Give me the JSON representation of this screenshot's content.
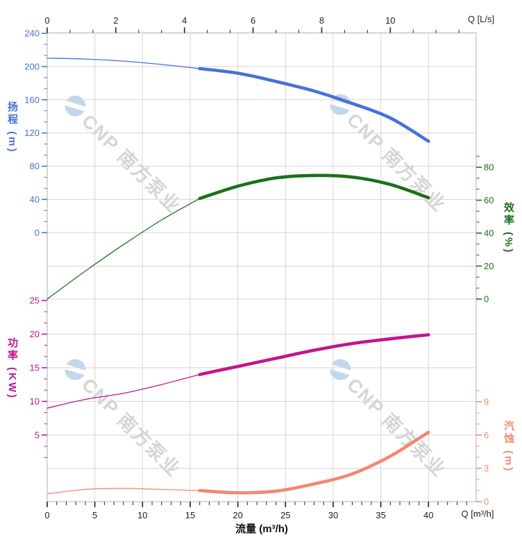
{
  "watermark": {
    "text": "CNP 南方泵业"
  },
  "colors": {
    "head": "#4a6fd8",
    "efficiency": "#1a701a",
    "power": "#c2158e",
    "npsh": "#f28a72",
    "grid": "#d6d6d6",
    "border": "#bdbdbd",
    "axis_text": "#222222",
    "watermark_text": "#d5d5d5",
    "watermark_logo": "#c3d7ec"
  },
  "chart_data": {
    "type": "line",
    "title": "",
    "x_axis_bottom": {
      "label": "流量 (m³/h)",
      "unit": "Q [m³/h]",
      "range": [
        0,
        45
      ],
      "major_ticks": [
        0,
        5,
        10,
        15,
        20,
        25,
        30,
        35,
        40
      ],
      "minor_step": 1
    },
    "x_axis_top": {
      "unit": "Q [L/s]",
      "range": [
        0,
        12.5
      ],
      "major_ticks": [
        0,
        2,
        4,
        6,
        8,
        10
      ],
      "minor_step": 0.667
    },
    "y_axes": {
      "head": {
        "label": "扬程 (m)",
        "side": "left",
        "range": [
          0,
          240
        ],
        "major_ticks": [
          0,
          40,
          80,
          120,
          160,
          200,
          240
        ],
        "minor_step": 13.333
      },
      "efficiency": {
        "label": "效率 (%)",
        "side": "right",
        "range": [
          0,
          80
        ],
        "major_ticks": [
          0,
          20,
          40,
          60,
          80
        ],
        "minor_step": 6.667
      },
      "power": {
        "label": "功率 (KW)",
        "side": "left",
        "range": [
          5,
          25
        ],
        "major_ticks": [
          5,
          10,
          15,
          20,
          25
        ],
        "minor_step": 1.667
      },
      "npsh": {
        "label": "汽蚀 (m)",
        "side": "right",
        "range": [
          0,
          9
        ],
        "major_ticks": [
          0,
          3,
          6,
          9
        ],
        "minor_step": 1
      }
    },
    "grid": true,
    "legend": "none",
    "bold_segment_x_range": [
      16,
      40
    ],
    "flow_x": [
      0,
      4,
      8,
      12,
      16,
      20,
      24,
      28,
      32,
      36,
      40
    ],
    "series": [
      {
        "name": "head",
        "axis": "head",
        "color": "#4671d8",
        "values": [
          210,
          209,
          206.5,
          202.5,
          197.5,
          192,
          182,
          170.5,
          155.5,
          138,
          110
        ]
      },
      {
        "name": "efficiency",
        "axis": "efficiency",
        "color": "#1a701a",
        "values": [
          0,
          17,
          33,
          48,
          61,
          68.5,
          73.5,
          75,
          74,
          69.5,
          61.5
        ]
      },
      {
        "name": "power",
        "axis": "power",
        "color": "#c2158e",
        "values": [
          9,
          10.3,
          11.2,
          12.5,
          14,
          15.2,
          16.4,
          17.6,
          18.6,
          19.3,
          19.9
        ]
      },
      {
        "name": "npsh",
        "axis": "npsh",
        "color": "#f4876f",
        "values": [
          0.7,
          1.1,
          1.2,
          1.1,
          1.0,
          0.8,
          0.95,
          1.6,
          2.5,
          4.1,
          6.25
        ]
      }
    ]
  }
}
